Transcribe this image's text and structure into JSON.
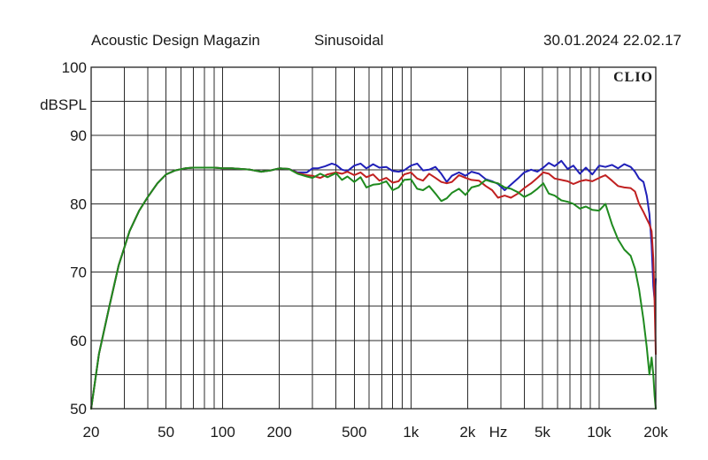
{
  "header": {
    "publisher": "Acoustic Design Magazin",
    "mode": "Sinusoidal",
    "timestamp": "30.01.2024 22.02.17",
    "brand": "CLIO"
  },
  "chart_data": {
    "type": "line",
    "title": "",
    "xlabel": "Hz",
    "ylabel": "dBSPL",
    "x_scale": "log",
    "xlim": [
      20,
      20000
    ],
    "ylim": [
      50,
      100
    ],
    "grid": true,
    "x_tick_labels": [
      {
        "value": 20,
        "label": "20"
      },
      {
        "value": 50,
        "label": "50"
      },
      {
        "value": 100,
        "label": "100"
      },
      {
        "value": 200,
        "label": "200"
      },
      {
        "value": 500,
        "label": "500"
      },
      {
        "value": 1000,
        "label": "1k"
      },
      {
        "value": 2000,
        "label": "2k"
      },
      {
        "value": 5000,
        "label": "5k"
      },
      {
        "value": 10000,
        "label": "10k"
      },
      {
        "value": 20000,
        "label": "20k"
      }
    ],
    "y_tick_labels": [
      {
        "value": 100,
        "label": "100"
      },
      {
        "value": 90,
        "label": "90"
      },
      {
        "value": 80,
        "label": "80"
      },
      {
        "value": 70,
        "label": "70"
      },
      {
        "value": 60,
        "label": "60"
      },
      {
        "value": 50,
        "label": "50"
      }
    ],
    "series": [
      {
        "color": "#2020b8",
        "points": [
          [
            20,
            50
          ],
          [
            22,
            58
          ],
          [
            25,
            65
          ],
          [
            28,
            71
          ],
          [
            32,
            76
          ],
          [
            36,
            79
          ],
          [
            40,
            81
          ],
          [
            45,
            83
          ],
          [
            50,
            84.3
          ],
          [
            56,
            84.9
          ],
          [
            63,
            85.2
          ],
          [
            70,
            85.3
          ],
          [
            80,
            85.3
          ],
          [
            90,
            85.3
          ],
          [
            100,
            85.2
          ],
          [
            112,
            85.2
          ],
          [
            125,
            85.1
          ],
          [
            140,
            85
          ],
          [
            160,
            84.7
          ],
          [
            180,
            84.9
          ],
          [
            200,
            85.2
          ],
          [
            225,
            85.1
          ],
          [
            250,
            84.6
          ],
          [
            280,
            84.6
          ],
          [
            300,
            85.2
          ],
          [
            320,
            85.2
          ],
          [
            350,
            85.5
          ],
          [
            380,
            85.9
          ],
          [
            400,
            85.7
          ],
          [
            430,
            85
          ],
          [
            460,
            84.8
          ],
          [
            500,
            85.6
          ],
          [
            540,
            85.9
          ],
          [
            580,
            85.2
          ],
          [
            630,
            85.8
          ],
          [
            680,
            85.3
          ],
          [
            740,
            85.4
          ],
          [
            800,
            84.8
          ],
          [
            860,
            84.7
          ],
          [
            920,
            84.9
          ],
          [
            1000,
            85.6
          ],
          [
            1080,
            85.9
          ],
          [
            1160,
            84.9
          ],
          [
            1250,
            85
          ],
          [
            1350,
            85.4
          ],
          [
            1450,
            84.4
          ],
          [
            1550,
            83.2
          ],
          [
            1650,
            84.1
          ],
          [
            1800,
            84.6
          ],
          [
            1950,
            84.1
          ],
          [
            2100,
            84.7
          ],
          [
            2300,
            84.4
          ],
          [
            2500,
            83.6
          ],
          [
            2700,
            83.3
          ],
          [
            2900,
            82.9
          ],
          [
            3150,
            82
          ],
          [
            3400,
            82.8
          ],
          [
            3700,
            83.7
          ],
          [
            4000,
            84.6
          ],
          [
            4350,
            85
          ],
          [
            4700,
            84.7
          ],
          [
            5050,
            85.3
          ],
          [
            5400,
            86
          ],
          [
            5800,
            85.5
          ],
          [
            6300,
            86.3
          ],
          [
            6800,
            85.1
          ],
          [
            7300,
            85.6
          ],
          [
            7900,
            84.4
          ],
          [
            8500,
            85.3
          ],
          [
            9200,
            84.3
          ],
          [
            10000,
            85.6
          ],
          [
            10800,
            85.4
          ],
          [
            11700,
            85.7
          ],
          [
            12600,
            85.2
          ],
          [
            13600,
            85.8
          ],
          [
            14700,
            85.4
          ],
          [
            15500,
            84.7
          ],
          [
            16300,
            83.7
          ],
          [
            17200,
            83.2
          ],
          [
            17900,
            81.2
          ],
          [
            18500,
            78.5
          ],
          [
            19000,
            74
          ],
          [
            19400,
            68
          ],
          [
            19700,
            66
          ],
          [
            20000,
            69
          ]
        ]
      },
      {
        "color": "#c02020",
        "points": [
          [
            20,
            50
          ],
          [
            22,
            58
          ],
          [
            25,
            65
          ],
          [
            28,
            71
          ],
          [
            32,
            76
          ],
          [
            36,
            79
          ],
          [
            40,
            81
          ],
          [
            45,
            83
          ],
          [
            50,
            84.3
          ],
          [
            56,
            84.9
          ],
          [
            63,
            85.2
          ],
          [
            70,
            85.3
          ],
          [
            80,
            85.3
          ],
          [
            90,
            85.3
          ],
          [
            100,
            85.2
          ],
          [
            112,
            85.2
          ],
          [
            125,
            85.1
          ],
          [
            140,
            85
          ],
          [
            160,
            84.7
          ],
          [
            180,
            84.9
          ],
          [
            200,
            85.2
          ],
          [
            225,
            85.1
          ],
          [
            250,
            84.5
          ],
          [
            280,
            84.2
          ],
          [
            300,
            84.1
          ],
          [
            330,
            83.8
          ],
          [
            360,
            84.3
          ],
          [
            400,
            84.6
          ],
          [
            430,
            84.4
          ],
          [
            460,
            84.7
          ],
          [
            500,
            84.2
          ],
          [
            540,
            84.6
          ],
          [
            580,
            83.9
          ],
          [
            630,
            84.3
          ],
          [
            680,
            83.4
          ],
          [
            740,
            83.8
          ],
          [
            800,
            83.1
          ],
          [
            860,
            83.3
          ],
          [
            920,
            84.3
          ],
          [
            1000,
            84.6
          ],
          [
            1080,
            83.7
          ],
          [
            1160,
            83.4
          ],
          [
            1250,
            84.4
          ],
          [
            1350,
            83.8
          ],
          [
            1450,
            83.2
          ],
          [
            1550,
            83
          ],
          [
            1650,
            83.2
          ],
          [
            1800,
            84.2
          ],
          [
            1950,
            83.8
          ],
          [
            2100,
            83.5
          ],
          [
            2300,
            83.4
          ],
          [
            2500,
            82.6
          ],
          [
            2700,
            82
          ],
          [
            2900,
            80.9
          ],
          [
            3150,
            81.2
          ],
          [
            3400,
            80.9
          ],
          [
            3700,
            81.5
          ],
          [
            4000,
            82.3
          ],
          [
            4350,
            83
          ],
          [
            4700,
            83.8
          ],
          [
            5050,
            84.6
          ],
          [
            5400,
            84.4
          ],
          [
            5800,
            83.7
          ],
          [
            6300,
            83.5
          ],
          [
            6800,
            83.3
          ],
          [
            7300,
            82.9
          ],
          [
            7900,
            83.3
          ],
          [
            8500,
            83.5
          ],
          [
            9200,
            83.3
          ],
          [
            10000,
            83.8
          ],
          [
            10800,
            84.2
          ],
          [
            11700,
            83.4
          ],
          [
            12600,
            82.6
          ],
          [
            13600,
            82.4
          ],
          [
            14700,
            82.3
          ],
          [
            15500,
            81.8
          ],
          [
            16300,
            80
          ],
          [
            17200,
            78.8
          ],
          [
            17900,
            77.8
          ],
          [
            18500,
            77
          ],
          [
            19000,
            76
          ],
          [
            19400,
            72
          ],
          [
            19700,
            66
          ],
          [
            20000,
            58
          ]
        ]
      },
      {
        "color": "#1f8a1f",
        "points": [
          [
            20,
            50
          ],
          [
            22,
            58
          ],
          [
            25,
            65
          ],
          [
            28,
            71
          ],
          [
            32,
            76
          ],
          [
            36,
            79
          ],
          [
            40,
            81
          ],
          [
            45,
            83
          ],
          [
            50,
            84.3
          ],
          [
            56,
            84.9
          ],
          [
            63,
            85.2
          ],
          [
            70,
            85.3
          ],
          [
            80,
            85.3
          ],
          [
            90,
            85.3
          ],
          [
            100,
            85.2
          ],
          [
            112,
            85.2
          ],
          [
            125,
            85.1
          ],
          [
            140,
            85
          ],
          [
            160,
            84.7
          ],
          [
            180,
            84.9
          ],
          [
            200,
            85.2
          ],
          [
            225,
            85.1
          ],
          [
            250,
            84.4
          ],
          [
            280,
            84
          ],
          [
            300,
            83.8
          ],
          [
            330,
            84.4
          ],
          [
            360,
            83.9
          ],
          [
            400,
            84.5
          ],
          [
            430,
            83.5
          ],
          [
            460,
            84
          ],
          [
            500,
            83.2
          ],
          [
            540,
            83.9
          ],
          [
            580,
            82.4
          ],
          [
            630,
            82.8
          ],
          [
            680,
            82.9
          ],
          [
            740,
            83.3
          ],
          [
            800,
            82
          ],
          [
            860,
            82.4
          ],
          [
            920,
            83.5
          ],
          [
            1000,
            83.6
          ],
          [
            1080,
            82.2
          ],
          [
            1160,
            82
          ],
          [
            1250,
            82.6
          ],
          [
            1350,
            81.5
          ],
          [
            1450,
            80.4
          ],
          [
            1550,
            80.8
          ],
          [
            1650,
            81.6
          ],
          [
            1800,
            82.2
          ],
          [
            1950,
            81.3
          ],
          [
            2100,
            82.4
          ],
          [
            2300,
            82.7
          ],
          [
            2500,
            83.5
          ],
          [
            2700,
            83.2
          ],
          [
            2900,
            83
          ],
          [
            3150,
            82.4
          ],
          [
            3400,
            82.2
          ],
          [
            3700,
            81.7
          ],
          [
            4000,
            81
          ],
          [
            4350,
            81.5
          ],
          [
            4700,
            82.2
          ],
          [
            5050,
            83
          ],
          [
            5400,
            81.5
          ],
          [
            5800,
            81.2
          ],
          [
            6300,
            80.5
          ],
          [
            6800,
            80.3
          ],
          [
            7300,
            80
          ],
          [
            7900,
            79.3
          ],
          [
            8500,
            79.6
          ],
          [
            9200,
            79.1
          ],
          [
            10000,
            79
          ],
          [
            10800,
            80
          ],
          [
            11700,
            77
          ],
          [
            12600,
            74.8
          ],
          [
            13600,
            73.3
          ],
          [
            14700,
            72.4
          ],
          [
            15500,
            70.5
          ],
          [
            16300,
            67.5
          ],
          [
            17200,
            63
          ],
          [
            17900,
            59
          ],
          [
            18500,
            55
          ],
          [
            19000,
            57.5
          ],
          [
            19400,
            55
          ],
          [
            19700,
            52
          ],
          [
            20000,
            50
          ]
        ]
      }
    ]
  }
}
